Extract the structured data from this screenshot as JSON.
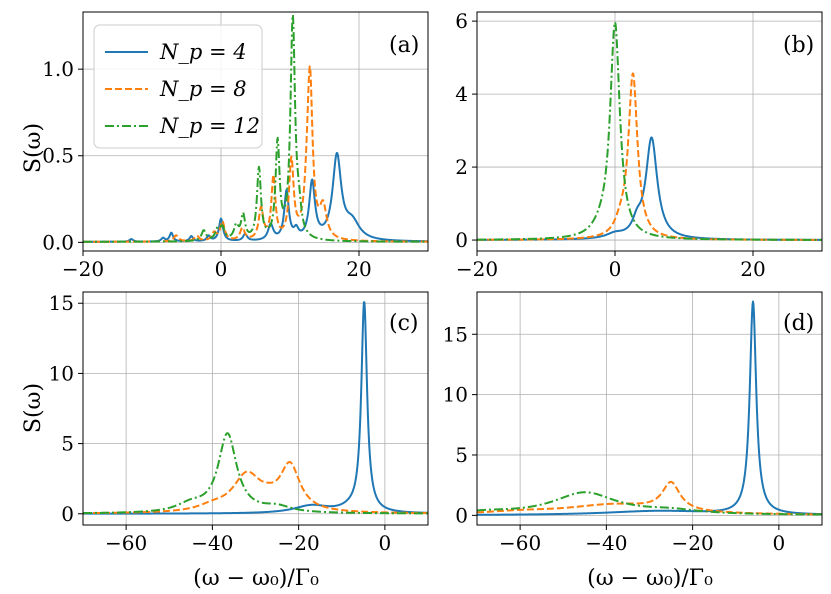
{
  "colors": {
    "Np4": "#1f77b4",
    "Np8": "#ff7f0e",
    "Np12": "#2ca02c",
    "grid": "#b0b0b0"
  },
  "ylabel": "S(ω)",
  "xlabel": "(ω − ω₀)/Γ₀",
  "legend": [
    "N_p = 4",
    "N_p = 8",
    "N_p = 12"
  ],
  "chart_data": [
    {
      "type": "line",
      "panel": "(a)",
      "xlim": [
        -20,
        30
      ],
      "ylim": [
        -0.05,
        1.33
      ],
      "xticks": [
        -20,
        0,
        20
      ],
      "xtick_labels": [
        "−20",
        "0",
        "20"
      ],
      "yticks": [
        0,
        0.5,
        1.0
      ],
      "ytick_labels": [
        "0.0",
        "0.5",
        "1.0"
      ],
      "ylabel": "S(ω)",
      "xlabel": "",
      "legend": "top-left",
      "series": [
        {
          "name": "N_p = 4",
          "style": "solid",
          "baseline": 0.003,
          "peaks": [
            [
              -13,
              0.015,
              0.3
            ],
            [
              -8.4,
              0.02,
              0.3
            ],
            [
              -7.2,
              0.05,
              0.3
            ],
            [
              -4.3,
              0.03,
              0.3
            ],
            [
              -1.8,
              0.03,
              0.3
            ],
            [
              0,
              0.13,
              0.35
            ],
            [
              3.5,
              0.04,
              0.35
            ],
            [
              7.2,
              0.09,
              0.45
            ],
            [
              9.5,
              0.28,
              0.4
            ],
            [
              10.9,
              0.05,
              0.4
            ],
            [
              13.2,
              0.33,
              0.5
            ],
            [
              16.8,
              0.48,
              0.75
            ],
            [
              19.0,
              0.1,
              1.3
            ]
          ]
        },
        {
          "name": "N_p = 8",
          "style": "dashed",
          "baseline": 0.003,
          "peaks": [
            [
              -6.5,
              0.035,
              0.4
            ],
            [
              -3.5,
              0.03,
              0.4
            ],
            [
              -1.0,
              0.045,
              0.4
            ],
            [
              0.2,
              0.11,
              0.4
            ],
            [
              3.1,
              0.07,
              0.4
            ],
            [
              5.8,
              0.18,
              0.4
            ],
            [
              7.6,
              0.36,
              0.35
            ],
            [
              10.2,
              0.45,
              0.4
            ],
            [
              12.5,
              0.17,
              0.5
            ],
            [
              12.9,
              0.88,
              0.45
            ],
            [
              14.8,
              0.18,
              0.6
            ]
          ]
        },
        {
          "name": "N_p = 12",
          "style": "dashdot",
          "baseline": 0.003,
          "peaks": [
            [
              -2.5,
              0.06,
              0.4
            ],
            [
              -0.5,
              0.06,
              0.4
            ],
            [
              0.2,
              0.07,
              0.4
            ],
            [
              2.2,
              0.08,
              0.4
            ],
            [
              3.2,
              0.14,
              0.35
            ],
            [
              5.5,
              0.41,
              0.35
            ],
            [
              8.2,
              0.55,
              0.35
            ],
            [
              10.4,
              1.28,
              0.4
            ],
            [
              11.3,
              0.12,
              0.4
            ]
          ]
        }
      ]
    },
    {
      "type": "line",
      "panel": "(b)",
      "xlim": [
        -20,
        30
      ],
      "ylim": [
        -0.3,
        6.25
      ],
      "xticks": [
        -20,
        0,
        20
      ],
      "xtick_labels": [
        "−20",
        "0",
        "20"
      ],
      "yticks": [
        0,
        2,
        4,
        6
      ],
      "ytick_labels": [
        "0",
        "2",
        "4",
        "6"
      ],
      "ylabel": "",
      "xlabel": "",
      "series": [
        {
          "name": "N_p = 4",
          "style": "solid",
          "baseline": 0.0,
          "peaks": [
            [
              5.3,
              2.76,
              1.0
            ],
            [
              3.2,
              0.35,
              0.8
            ],
            [
              0,
              0.12,
              1.5
            ]
          ]
        },
        {
          "name": "N_p = 8",
          "style": "dashed",
          "baseline": 0.0,
          "peaks": [
            [
              2.6,
              4.5,
              0.8
            ],
            [
              0.8,
              0.3,
              1.0
            ]
          ]
        },
        {
          "name": "N_p = 12",
          "style": "dashdot",
          "baseline": 0.0,
          "peaks": [
            [
              0,
              5.9,
              0.85
            ],
            [
              -2,
              0.2,
              1.5
            ]
          ]
        }
      ]
    },
    {
      "type": "line",
      "panel": "(c)",
      "xlim": [
        -70,
        10
      ],
      "ylim": [
        -0.8,
        15.8
      ],
      "xticks": [
        -60,
        -40,
        -20,
        0
      ],
      "xtick_labels": [
        "−60",
        "−40",
        "−20",
        "0"
      ],
      "yticks": [
        0,
        5,
        10,
        15
      ],
      "ytick_labels": [
        "0",
        "5",
        "10",
        "15"
      ],
      "ylabel": "S(ω)",
      "xlabel": "(ω − ω₀)/Γ₀",
      "series": [
        {
          "name": "N_p = 4",
          "style": "solid",
          "baseline": 0.0,
          "peaks": [
            [
              -4.8,
              14.95,
              0.8
            ],
            [
              -17,
              0.55,
              5
            ],
            [
              -8,
              0.25,
              3
            ]
          ]
        },
        {
          "name": "N_p = 8",
          "style": "dashed",
          "baseline": 0.0,
          "peaks": [
            [
              -22,
              3.2,
              2.8
            ],
            [
              -32,
              2.6,
              4.0
            ],
            [
              -40,
              0.35,
              4
            ],
            [
              -27,
              0.4,
              3
            ]
          ]
        },
        {
          "name": "N_p = 12",
          "style": "dashdot",
          "baseline": 0.0,
          "peaks": [
            [
              -36.5,
              5.6,
              2.6
            ],
            [
              -45,
              0.55,
              4
            ],
            [
              -25,
              0.4,
              4
            ]
          ]
        }
      ]
    },
    {
      "type": "line",
      "panel": "(d)",
      "xlim": [
        -70,
        10
      ],
      "ylim": [
        -0.8,
        18.5
      ],
      "xticks": [
        -60,
        -40,
        -20,
        0
      ],
      "xtick_labels": [
        "−60",
        "−40",
        "−20",
        "0"
      ],
      "yticks": [
        0,
        5,
        10,
        15
      ],
      "ytick_labels": [
        "0",
        "5",
        "10",
        "15"
      ],
      "ylabel": "",
      "xlabel": "(ω − ω₀)/Γ₀",
      "series": [
        {
          "name": "N_p = 4",
          "style": "solid",
          "baseline": 0.0,
          "peaks": [
            [
              -6,
              17.6,
              0.9
            ],
            [
              -28,
              0.35,
              15
            ]
          ]
        },
        {
          "name": "N_p = 8",
          "style": "dashed",
          "baseline": 0.0,
          "peaks": [
            [
              -25,
              2.3,
              2.5
            ],
            [
              -38,
              0.85,
              14
            ],
            [
              -60,
              0.2,
              10
            ]
          ]
        },
        {
          "name": "N_p = 12",
          "style": "dashdot",
          "baseline": 0.0,
          "peaks": [
            [
              -45,
              1.85,
              9
            ],
            [
              -68,
              0.2,
              8
            ],
            [
              -25,
              0.3,
              8
            ]
          ]
        }
      ]
    }
  ]
}
